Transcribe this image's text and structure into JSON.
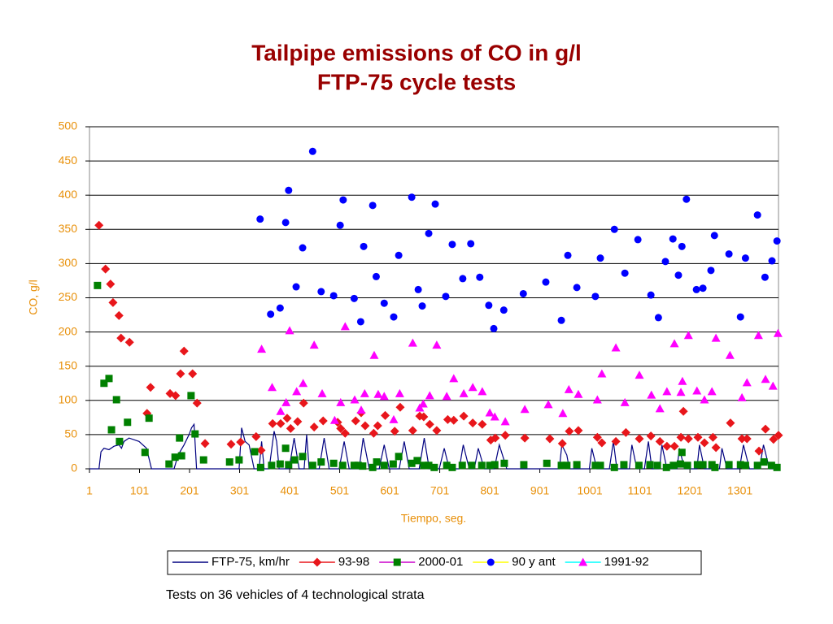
{
  "chart_data": {
    "type": "scatter",
    "title": "Tailpipe emissions of CO in g/l",
    "subtitle": "FTP-75 cycle tests",
    "x_label": "Tiempo, seg.",
    "y_label": "CO, g/l",
    "note": "Tests on 36 vehicles of 4 technological strata",
    "xlim": [
      1,
      1378
    ],
    "xticks": [
      1,
      101,
      201,
      301,
      401,
      501,
      601,
      701,
      801,
      901,
      1001,
      1101,
      1201,
      1301
    ],
    "ylim": [
      0,
      500
    ],
    "yticks": [
      0,
      50,
      100,
      150,
      200,
      250,
      300,
      350,
      400,
      450,
      500
    ],
    "grid": true,
    "legend": "bottom",
    "series": [
      {
        "name": "FTP-75, km/hr",
        "type": "line",
        "color": "#000080",
        "x": [
          1,
          20,
          24,
          30,
          40,
          50,
          60,
          65,
          70,
          80,
          100,
          115,
          125,
          170,
          178,
          190,
          200,
          205,
          210,
          215,
          300,
          305,
          312,
          320,
          330,
          340,
          345,
          350,
          360,
          370,
          375,
          380,
          400,
          410,
          420,
          430,
          435,
          440,
          460,
          470,
          480,
          500,
          510,
          520,
          540,
          548,
          560,
          580,
          590,
          600,
          620,
          630,
          640,
          660,
          670,
          680,
          700,
          710,
          720,
          740,
          748,
          760,
          770,
          778,
          790,
          810,
          820,
          835,
          940,
          945,
          955,
          960,
          1000,
          1005,
          1015,
          1040,
          1048,
          1055,
          1080,
          1085,
          1095,
          1110,
          1118,
          1125,
          1140,
          1145,
          1155,
          1175,
          1180,
          1190,
          1215,
          1220,
          1230,
          1260,
          1265,
          1275,
          1300,
          1308,
          1320,
          1340,
          1348,
          1360,
          1378
        ],
        "values": [
          0,
          0,
          25,
          30,
          28,
          33,
          35,
          30,
          40,
          45,
          40,
          30,
          0,
          0,
          20,
          35,
          50,
          60,
          65,
          0,
          0,
          60,
          40,
          35,
          0,
          0,
          40,
          0,
          0,
          55,
          40,
          0,
          0,
          45,
          0,
          0,
          50,
          0,
          0,
          45,
          0,
          0,
          40,
          0,
          0,
          45,
          0,
          0,
          35,
          0,
          0,
          40,
          0,
          0,
          45,
          0,
          0,
          30,
          0,
          0,
          35,
          0,
          0,
          30,
          0,
          0,
          35,
          0,
          0,
          35,
          20,
          0,
          0,
          30,
          0,
          0,
          40,
          0,
          0,
          35,
          0,
          0,
          40,
          0,
          0,
          35,
          0,
          0,
          30,
          0,
          0,
          35,
          0,
          0,
          30,
          0,
          0,
          35,
          0,
          0,
          35,
          0,
          0
        ]
      },
      {
        "name": "93-98",
        "type": "scatter",
        "marker": "diamond",
        "color": "#e8161b",
        "line_color": "#e8161b",
        "x": [
          20,
          33,
          43,
          48,
          60,
          64,
          81,
          116,
          123,
          162,
          173,
          183,
          190,
          207,
          216,
          232,
          284,
          303,
          334,
          344,
          367,
          383,
          396,
          403,
          417,
          429,
          450,
          468,
          497,
          503,
          512,
          533,
          544,
          552,
          569,
          577,
          592,
          611,
          622,
          647,
          661,
          669,
          681,
          695,
          717,
          729,
          749,
          767,
          786,
          803,
          812,
          832,
          871,
          921,
          946,
          960,
          978,
          1016,
          1025,
          1053,
          1073,
          1100,
          1123,
          1141,
          1155,
          1170,
          1183,
          1188,
          1198,
          1217,
          1230,
          1247,
          1253,
          1282,
          1305,
          1315,
          1339,
          1352,
          1368,
          1378
        ],
        "values": [
          356,
          292,
          270,
          243,
          224,
          191,
          185,
          81,
          119,
          110,
          107,
          139,
          172,
          139,
          96,
          37,
          36,
          39,
          47,
          27,
          66,
          66,
          74,
          59,
          69,
          96,
          61,
          70,
          68,
          59,
          52,
          70,
          82,
          63,
          52,
          63,
          78,
          55,
          90,
          56,
          77,
          76,
          65,
          56,
          72,
          71,
          77,
          67,
          65,
          42,
          45,
          49,
          45,
          44,
          37,
          55,
          56,
          46,
          38,
          40,
          53,
          44,
          48,
          40,
          33,
          33,
          46,
          84,
          44,
          46,
          38,
          46,
          31,
          67,
          44,
          44,
          26,
          58,
          43,
          49
        ]
      },
      {
        "name": "2000-01",
        "type": "scatter",
        "marker": "square",
        "color": "#008000",
        "line_color": "#cc00cc",
        "x": [
          17,
          30,
          40,
          45,
          55,
          61,
          77,
          112,
          120,
          160,
          172,
          181,
          185,
          204,
          212,
          229,
          281,
          300,
          331,
          343,
          365,
          382,
          393,
          399,
          411,
          427,
          447,
          464,
          489,
          507,
          530,
          538,
          547,
          567,
          575,
          590,
          608,
          619,
          645,
          656,
          669,
          679,
          690,
          715,
          726,
          746,
          765,
          785,
          801,
          811,
          830,
          869,
          915,
          944,
          955,
          975,
          1012,
          1022,
          1050,
          1069,
          1099,
          1121,
          1136,
          1154,
          1168,
          1182,
          1185,
          1196,
          1216,
          1227,
          1245,
          1251,
          1279,
          1302,
          1312,
          1336,
          1349,
          1364,
          1375
        ],
        "values": [
          268,
          125,
          132,
          57,
          101,
          40,
          68,
          24,
          74,
          7,
          17,
          45,
          19,
          107,
          51,
          13,
          10,
          13,
          25,
          2,
          5,
          7,
          30,
          6,
          13,
          18,
          5,
          10,
          8,
          5,
          5,
          5,
          4,
          2,
          10,
          5,
          7,
          18,
          8,
          12,
          5,
          5,
          2,
          5,
          2,
          5,
          5,
          5,
          5,
          6,
          8,
          6,
          8,
          5,
          5,
          6,
          5,
          5,
          2,
          6,
          5,
          6,
          5,
          2,
          5,
          7,
          24,
          5,
          6,
          6,
          6,
          2,
          6,
          6,
          5,
          5,
          10,
          5,
          2
        ]
      },
      {
        "name": "90 y ant",
        "type": "scatter",
        "marker": "circle",
        "color": "#0000ff",
        "line_color": "#ffff00",
        "x": [
          342,
          363,
          382,
          393,
          399,
          414,
          427,
          447,
          464,
          489,
          502,
          508,
          530,
          543,
          549,
          567,
          574,
          590,
          609,
          619,
          645,
          658,
          666,
          679,
          692,
          713,
          726,
          747,
          763,
          781,
          799,
          809,
          829,
          868,
          913,
          944,
          957,
          975,
          1012,
          1022,
          1050,
          1071,
          1097,
          1123,
          1138,
          1152,
          1167,
          1178,
          1185,
          1194,
          1214,
          1227,
          1243,
          1250,
          1279,
          1302,
          1312,
          1336,
          1351,
          1365,
          1375
        ],
        "values": [
          365,
          226,
          235,
          360,
          407,
          266,
          323,
          464,
          259,
          253,
          356,
          393,
          249,
          215,
          325,
          385,
          281,
          242,
          222,
          312,
          397,
          262,
          238,
          344,
          387,
          252,
          328,
          278,
          329,
          280,
          239,
          205,
          232,
          256,
          273,
          217,
          312,
          265,
          252,
          308,
          350,
          286,
          335,
          254,
          221,
          303,
          336,
          283,
          325,
          394,
          262,
          264,
          290,
          341,
          314,
          222,
          308,
          371,
          280,
          304,
          333
        ]
      },
      {
        "name": "1991-92",
        "type": "scatter",
        "marker": "triangle",
        "color": "#ff00ff",
        "line_color": "#00ffff",
        "x": [
          345,
          366,
          383,
          394,
          401,
          415,
          428,
          450,
          466,
          491,
          503,
          512,
          531,
          544,
          551,
          570,
          578,
          590,
          609,
          621,
          647,
          661,
          668,
          681,
          695,
          715,
          729,
          749,
          767,
          786,
          801,
          811,
          832,
          871,
          918,
          947,
          959,
          978,
          1016,
          1025,
          1053,
          1071,
          1100,
          1124,
          1141,
          1155,
          1170,
          1183,
          1186,
          1198,
          1215,
          1230,
          1245,
          1253,
          1281,
          1305,
          1315,
          1338,
          1352,
          1367,
          1377
        ],
        "values": [
          175,
          119,
          84,
          97,
          202,
          113,
          125,
          181,
          110,
          71,
          97,
          208,
          101,
          86,
          110,
          166,
          109,
          106,
          72,
          110,
          184,
          89,
          95,
          107,
          181,
          106,
          132,
          110,
          119,
          113,
          82,
          76,
          69,
          87,
          94,
          81,
          116,
          109,
          101,
          139,
          177,
          97,
          137,
          108,
          88,
          113,
          183,
          112,
          128,
          195,
          114,
          101,
          113,
          191,
          166,
          104,
          126,
          195,
          131,
          121,
          198
        ]
      }
    ]
  }
}
